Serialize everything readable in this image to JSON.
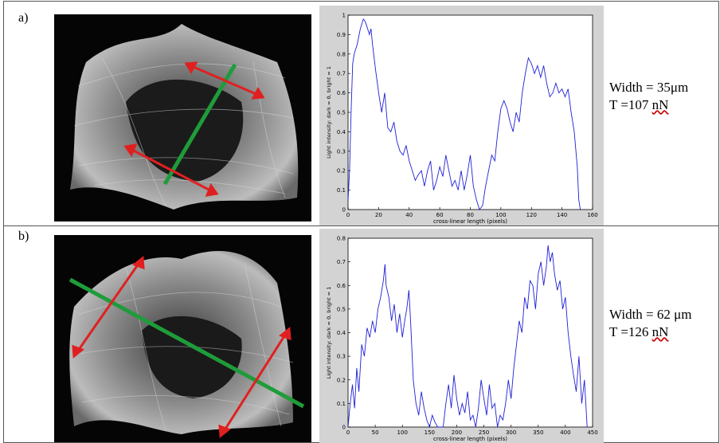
{
  "panels": [
    {
      "label": "a)",
      "width_text": "Width = 35μm",
      "tension_prefix": "T =107 ",
      "tension_unit": "nN"
    },
    {
      "label": "b)",
      "width_text": "Width = 62 μm",
      "tension_prefix": "T =126 ",
      "tension_unit": "nN"
    }
  ],
  "colors": {
    "trace": "#1f1fd6",
    "scan_line": "#1f9c3a",
    "arrows": "#e02020",
    "plot_bg": "#d3d3d3"
  },
  "chart_data": [
    {
      "type": "line",
      "xlabel": "cross-linear length (pixels)",
      "ylabel": "Light intensity: dark = 0, bright = 1",
      "xlim": [
        0,
        160
      ],
      "ylim": [
        0,
        1
      ],
      "xticks": [
        "0",
        "20",
        "40",
        "60",
        "80",
        "100",
        "120",
        "140",
        "160"
      ],
      "yticks": [
        "0",
        "0.1",
        "0.2",
        "0.3",
        "0.4",
        "0.5",
        "0.6",
        "0.7",
        "0.8",
        "0.9",
        "1"
      ],
      "series": [
        {
          "x": [
            0,
            1,
            2,
            3,
            4,
            6,
            8,
            10,
            11,
            12,
            14,
            15,
            16,
            18,
            20,
            22,
            24,
            26,
            28,
            30,
            32,
            34,
            36,
            38,
            40,
            42,
            44,
            46,
            48,
            50,
            52,
            54,
            56,
            58,
            60,
            62,
            64,
            66,
            68,
            70,
            72,
            74,
            76,
            78,
            80,
            82,
            84,
            86,
            88,
            90,
            92,
            94,
            96,
            98,
            100,
            102,
            104,
            106,
            108,
            110,
            112,
            114,
            116,
            118,
            120,
            122,
            124,
            126,
            128,
            130,
            132,
            134,
            136,
            138,
            140,
            142,
            144,
            146,
            148,
            150,
            151,
            152
          ],
          "y": [
            0.05,
            0.2,
            0.5,
            0.75,
            0.8,
            0.85,
            0.93,
            0.98,
            0.97,
            0.95,
            0.9,
            0.93,
            0.85,
            0.72,
            0.6,
            0.5,
            0.6,
            0.42,
            0.4,
            0.45,
            0.35,
            0.3,
            0.28,
            0.33,
            0.25,
            0.2,
            0.15,
            0.18,
            0.2,
            0.12,
            0.2,
            0.25,
            0.1,
            0.15,
            0.22,
            0.17,
            0.28,
            0.2,
            0.12,
            0.15,
            0.1,
            0.2,
            0.1,
            0.18,
            0.28,
            0.12,
            0.05,
            0.0,
            0.02,
            0.12,
            0.2,
            0.28,
            0.25,
            0.4,
            0.52,
            0.56,
            0.52,
            0.45,
            0.4,
            0.5,
            0.45,
            0.6,
            0.7,
            0.78,
            0.75,
            0.7,
            0.74,
            0.68,
            0.74,
            0.65,
            0.58,
            0.6,
            0.65,
            0.6,
            0.62,
            0.58,
            0.62,
            0.5,
            0.4,
            0.22,
            0.05,
            0.0
          ]
        }
      ]
    },
    {
      "type": "line",
      "xlabel": "cross-linear length (pixels)",
      "ylabel": "Light intensity: dark = 0, bright = 1",
      "xlim": [
        0,
        450
      ],
      "ylim": [
        0,
        0.8
      ],
      "xticks": [
        "0",
        "50",
        "100",
        "150",
        "200",
        "250",
        "300",
        "350",
        "400",
        "450"
      ],
      "yticks": [
        "0",
        "0.1",
        "0.2",
        "0.3",
        "0.4",
        "0.5",
        "0.6",
        "0.7",
        "0.8"
      ],
      "series": [
        {
          "x": [
            0,
            4,
            8,
            12,
            16,
            20,
            25,
            30,
            35,
            40,
            45,
            50,
            55,
            60,
            65,
            68,
            70,
            75,
            80,
            85,
            90,
            95,
            100,
            105,
            108,
            112,
            115,
            120,
            125,
            130,
            135,
            140,
            145,
            150,
            155,
            160,
            165,
            170,
            175,
            180,
            185,
            190,
            195,
            200,
            205,
            210,
            215,
            220,
            225,
            230,
            235,
            240,
            245,
            250,
            255,
            260,
            265,
            270,
            275,
            280,
            285,
            290,
            295,
            300,
            305,
            310,
            315,
            320,
            325,
            330,
            335,
            340,
            345,
            350,
            355,
            360,
            365,
            368,
            372,
            376,
            380,
            385,
            390,
            395,
            400,
            405,
            410,
            415,
            420,
            425,
            430,
            435,
            440
          ],
          "y": [
            0.0,
            0.1,
            0.18,
            0.08,
            0.25,
            0.15,
            0.35,
            0.3,
            0.42,
            0.38,
            0.45,
            0.4,
            0.5,
            0.55,
            0.62,
            0.69,
            0.6,
            0.55,
            0.45,
            0.52,
            0.4,
            0.48,
            0.38,
            0.46,
            0.5,
            0.58,
            0.45,
            0.2,
            0.1,
            0.05,
            0.15,
            0.08,
            0.03,
            0.0,
            0.05,
            0.02,
            0.0,
            0.0,
            0.0,
            0.1,
            0.18,
            0.08,
            0.22,
            0.12,
            0.05,
            0.1,
            0.06,
            0.15,
            0.03,
            0.05,
            0.0,
            0.08,
            0.2,
            0.12,
            0.05,
            0.18,
            0.08,
            0.1,
            0.0,
            0.05,
            0.03,
            0.1,
            0.2,
            0.12,
            0.25,
            0.35,
            0.45,
            0.4,
            0.55,
            0.5,
            0.62,
            0.6,
            0.5,
            0.65,
            0.7,
            0.6,
            0.68,
            0.77,
            0.7,
            0.74,
            0.65,
            0.58,
            0.62,
            0.5,
            0.55,
            0.4,
            0.3,
            0.22,
            0.15,
            0.3,
            0.1,
            0.2,
            0.0
          ]
        }
      ]
    }
  ]
}
